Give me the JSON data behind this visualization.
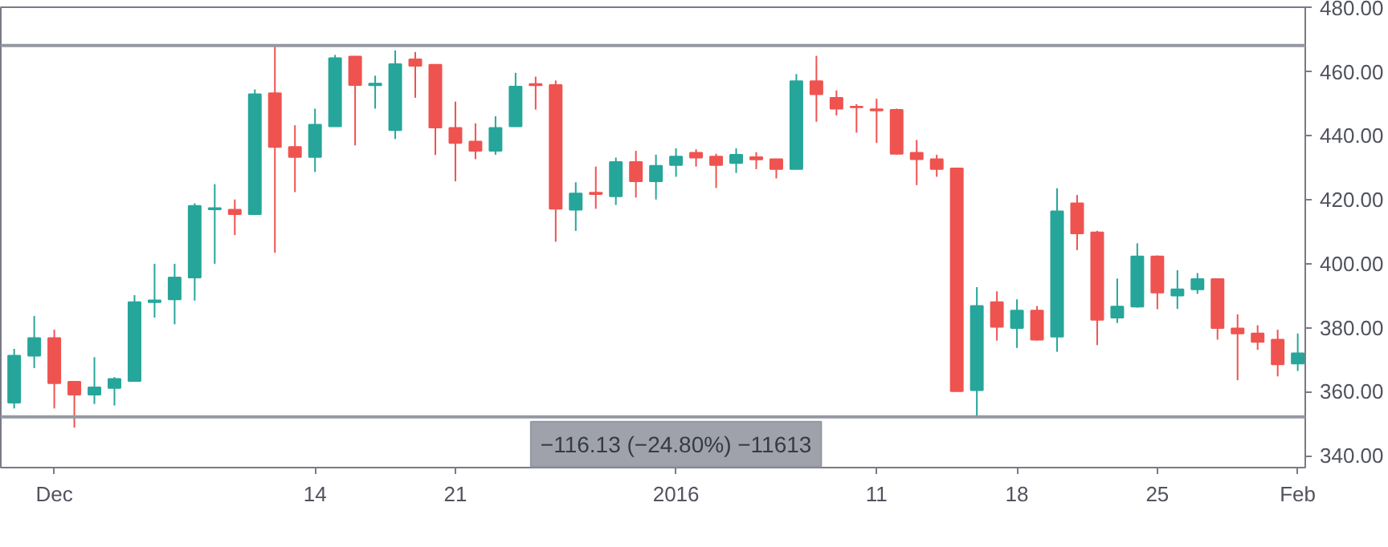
{
  "chart_data": {
    "type": "candlestick",
    "x": [
      "2015-11-29",
      "2015-11-30",
      "2015-12-01",
      "2015-12-02",
      "2015-12-03",
      "2015-12-04",
      "2015-12-05",
      "2015-12-06",
      "2015-12-07",
      "2015-12-08",
      "2015-12-09",
      "2015-12-10",
      "2015-12-11",
      "2015-12-12",
      "2015-12-13",
      "2015-12-14",
      "2015-12-15",
      "2015-12-16",
      "2015-12-17",
      "2015-12-18",
      "2015-12-19",
      "2015-12-20",
      "2015-12-21",
      "2015-12-22",
      "2015-12-23",
      "2015-12-24",
      "2015-12-25",
      "2015-12-26",
      "2015-12-27",
      "2015-12-28",
      "2015-12-29",
      "2015-12-30",
      "2015-12-31",
      "2016-01-01",
      "2016-01-02",
      "2016-01-03",
      "2016-01-04",
      "2016-01-05",
      "2016-01-06",
      "2016-01-07",
      "2016-01-08",
      "2016-01-09",
      "2016-01-10",
      "2016-01-11",
      "2016-01-12",
      "2016-01-13",
      "2016-01-14",
      "2016-01-15",
      "2016-01-16",
      "2016-01-17",
      "2016-01-18",
      "2016-01-19",
      "2016-01-20",
      "2016-01-21",
      "2016-01-22",
      "2016-01-23",
      "2016-01-24",
      "2016-01-25",
      "2016-01-26",
      "2016-01-27",
      "2016-01-28",
      "2016-01-29",
      "2016-01-30",
      "2016-01-31",
      "2016-02-01"
    ],
    "ohlc": [
      [
        356.6,
        373.4,
        354.8,
        371.3
      ],
      [
        371.3,
        383.7,
        367.4,
        376.8
      ],
      [
        376.8,
        379.4,
        354.8,
        362.7
      ],
      [
        363.1,
        363.1,
        348.8,
        359.1
      ],
      [
        359.1,
        370.8,
        356.2,
        361.4
      ],
      [
        361.2,
        364.6,
        355.7,
        364.0
      ],
      [
        363.4,
        390.2,
        363.4,
        388.0
      ],
      [
        388.0,
        400.0,
        383.2,
        388.6
      ],
      [
        388.9,
        400.0,
        381.1,
        395.7
      ],
      [
        395.7,
        418.9,
        388.5,
        418.1
      ],
      [
        417.0,
        424.9,
        400.0,
        417.4
      ],
      [
        416.9,
        420.1,
        409.0,
        415.5
      ],
      [
        415.5,
        454.5,
        415.5,
        453.0
      ],
      [
        453.3,
        468.26,
        403.5,
        436.5
      ],
      [
        436.5,
        443.3,
        422.4,
        433.4
      ],
      [
        433.4,
        448.5,
        428.7,
        443.5
      ],
      [
        443.0,
        465.3,
        443.0,
        464.3
      ],
      [
        464.8,
        464.8,
        437.0,
        455.9
      ],
      [
        455.8,
        458.8,
        448.5,
        456.3
      ],
      [
        441.8,
        466.7,
        439.0,
        462.4
      ],
      [
        463.9,
        466.2,
        451.9,
        461.9
      ],
      [
        462.2,
        462.2,
        434.0,
        442.6
      ],
      [
        442.5,
        450.7,
        425.8,
        437.8
      ],
      [
        438.2,
        443.9,
        432.7,
        435.3
      ],
      [
        435.3,
        446.1,
        434.1,
        442.5
      ],
      [
        443.0,
        459.7,
        443.0,
        455.4
      ],
      [
        456.2,
        458.5,
        448.2,
        455.8
      ],
      [
        455.9,
        457.3,
        406.9,
        417.2
      ],
      [
        416.9,
        425.5,
        410.3,
        422.0
      ],
      [
        422.2,
        430.4,
        417.2,
        421.8
      ],
      [
        421.1,
        433.2,
        418.4,
        431.8
      ],
      [
        431.8,
        435.3,
        420.7,
        425.8
      ],
      [
        425.8,
        434.1,
        420.1,
        430.6
      ],
      [
        430.9,
        436.1,
        427.2,
        433.5
      ],
      [
        434.7,
        435.8,
        430.4,
        433.2
      ],
      [
        433.5,
        434.4,
        423.7,
        430.9
      ],
      [
        431.5,
        436.1,
        428.4,
        434.1
      ],
      [
        433.3,
        434.9,
        429.6,
        432.6
      ],
      [
        432.7,
        432.7,
        426.7,
        429.6
      ],
      [
        429.6,
        459.3,
        429.6,
        457.1
      ],
      [
        457.1,
        465.0,
        444.4,
        453.0
      ],
      [
        451.9,
        454.2,
        446.4,
        448.5
      ],
      [
        449.1,
        449.9,
        441.0,
        448.9
      ],
      [
        448.3,
        451.6,
        437.8,
        447.9
      ],
      [
        448.1,
        448.5,
        434.1,
        434.4
      ],
      [
        434.7,
        438.7,
        424.6,
        432.7
      ],
      [
        432.7,
        434.1,
        427.2,
        429.6
      ],
      [
        429.8,
        429.8,
        360.2,
        360.2
      ],
      [
        360.5,
        392.7,
        352.13,
        386.8
      ],
      [
        388.0,
        391.4,
        376.0,
        380.3
      ],
      [
        379.9,
        388.9,
        373.7,
        385.4
      ],
      [
        385.4,
        386.8,
        376.0,
        376.3
      ],
      [
        377.2,
        423.6,
        372.5,
        416.4
      ],
      [
        418.9,
        421.5,
        404.3,
        409.5
      ],
      [
        409.8,
        410.3,
        374.6,
        382.5
      ],
      [
        383.2,
        395.4,
        381.5,
        386.6
      ],
      [
        386.6,
        406.4,
        386.3,
        402.3
      ],
      [
        402.3,
        402.6,
        385.8,
        391.0
      ],
      [
        390.1,
        398.0,
        385.9,
        392.0
      ],
      [
        392.0,
        397.1,
        390.6,
        395.2
      ],
      [
        395.2,
        395.4,
        376.3,
        379.9
      ],
      [
        379.8,
        384.2,
        363.6,
        378.2
      ],
      [
        378.2,
        380.8,
        373.1,
        375.6
      ],
      [
        376.3,
        379.4,
        364.8,
        368.6
      ],
      [
        368.8,
        378.2,
        366.5,
        372.0
      ]
    ],
    "colors": [
      "#26a69a",
      "#26a69a",
      "#ef5350",
      "#ef5350",
      "#26a69a",
      "#26a69a",
      "#26a69a",
      "#26a69a",
      "#26a69a",
      "#26a69a",
      "#26a69a",
      "#ef5350",
      "#26a69a",
      "#ef5350",
      "#ef5350",
      "#26a69a",
      "#26a69a",
      "#ef5350",
      "#26a69a",
      "#26a69a",
      "#ef5350",
      "#ef5350",
      "#ef5350",
      "#ef5350",
      "#26a69a",
      "#26a69a",
      "#ef5350",
      "#ef5350",
      "#26a69a",
      "#ef5350",
      "#26a69a",
      "#ef5350",
      "#26a69a",
      "#26a69a",
      "#ef5350",
      "#ef5350",
      "#26a69a",
      "#ef5350",
      "#ef5350",
      "#26a69a",
      "#ef5350",
      "#ef5350",
      "#ef5350",
      "#ef5350",
      "#ef5350",
      "#ef5350",
      "#ef5350",
      "#ef5350",
      "#26a69a",
      "#ef5350",
      "#26a69a",
      "#ef5350",
      "#26a69a",
      "#ef5350",
      "#ef5350",
      "#26a69a",
      "#26a69a",
      "#ef5350",
      "#26a69a",
      "#26a69a",
      "#ef5350",
      "#ef5350",
      "#ef5350",
      "#ef5350",
      "#26a69a"
    ],
    "xlim": [
      "2015-11-28T08:00",
      "2016-02-01T09:00"
    ],
    "xticks": [
      {
        "value": "2015-12-01",
        "label": "Dec"
      },
      {
        "value": "2015-12-14",
        "label": "14"
      },
      {
        "value": "2015-12-21",
        "label": "21"
      },
      {
        "value": "2016-01-01",
        "label": "2016"
      },
      {
        "value": "2016-01-11",
        "label": "11"
      },
      {
        "value": "2016-01-18",
        "label": "18"
      },
      {
        "value": "2016-01-25",
        "label": "25"
      },
      {
        "value": "2016-02-01",
        "label": "Feb"
      }
    ],
    "ylim": [
      336.3,
      480.2
    ],
    "yticks": [
      {
        "value": 340,
        "label": "340.00"
      },
      {
        "value": 360,
        "label": "360.00"
      },
      {
        "value": 380,
        "label": "380.00"
      },
      {
        "value": 400,
        "label": "400.00"
      },
      {
        "value": 420,
        "label": "420.00"
      },
      {
        "value": 440,
        "label": "440.00"
      },
      {
        "value": 460,
        "label": "460.00"
      },
      {
        "value": 480,
        "label": "480.00"
      }
    ],
    "ref_lines": [
      {
        "axis": "y",
        "value": 468.26,
        "color": "#9598a1"
      },
      {
        "axis": "y",
        "value": 352.13,
        "color": "#9598a1"
      }
    ],
    "annotations": [
      {
        "text": "−116.13 (−24.80%) −11613",
        "x": "2016-01-01",
        "y": 352.13
      }
    ],
    "grid": false
  }
}
